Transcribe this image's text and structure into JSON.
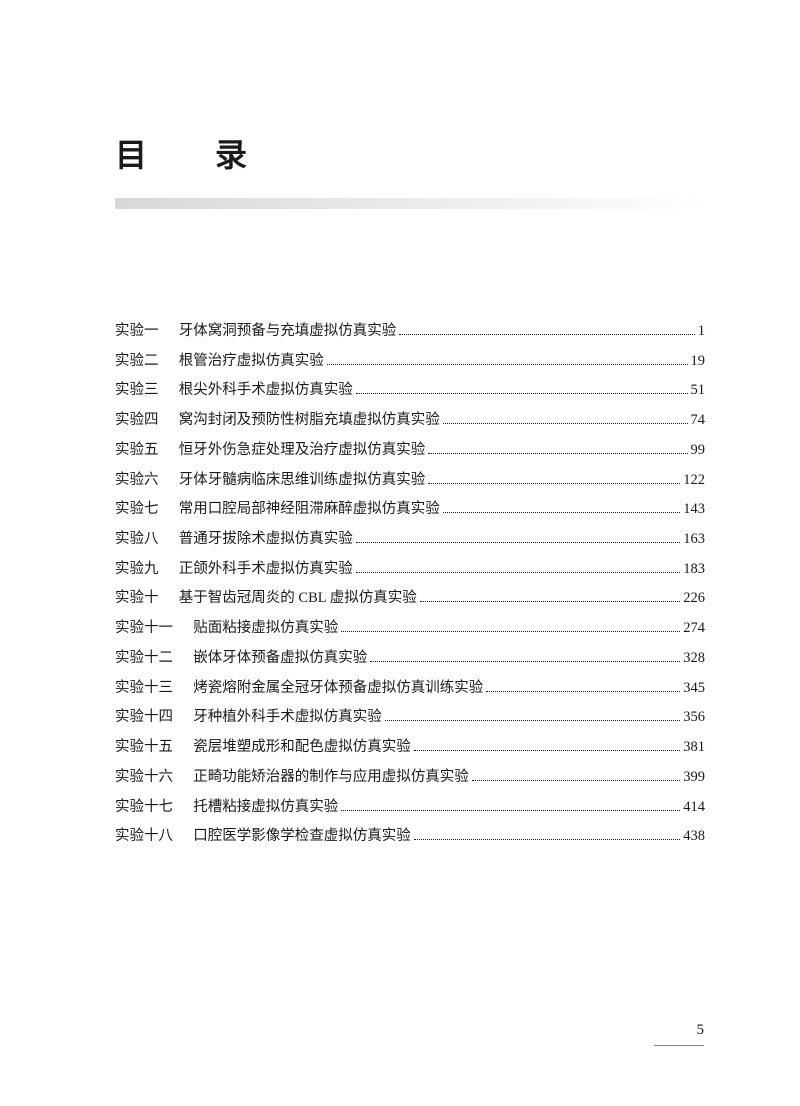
{
  "title": "目　录",
  "entries": [
    {
      "label": "实验一",
      "gap": "1.4em",
      "text": "牙体窝洞预备与充填虚拟仿真实验",
      "page": "1"
    },
    {
      "label": "实验二",
      "gap": "1.4em",
      "text": "根管治疗虚拟仿真实验",
      "page": "19"
    },
    {
      "label": "实验三",
      "gap": "1.4em",
      "text": "根尖外科手术虚拟仿真实验",
      "page": "51"
    },
    {
      "label": "实验四",
      "gap": "1.4em",
      "text": "窝沟封闭及预防性树脂充填虚拟仿真实验",
      "page": "74"
    },
    {
      "label": "实验五",
      "gap": "1.4em",
      "text": "恒牙外伤急症处理及治疗虚拟仿真实验",
      "page": "99"
    },
    {
      "label": "实验六",
      "gap": "1.4em",
      "text": "牙体牙髓病临床思维训练虚拟仿真实验",
      "page": "122"
    },
    {
      "label": "实验七",
      "gap": "1.4em",
      "text": "常用口腔局部神经阻滞麻醉虚拟仿真实验",
      "page": "143"
    },
    {
      "label": "实验八",
      "gap": "1.4em",
      "text": "普通牙拔除术虚拟仿真实验",
      "page": "163"
    },
    {
      "label": "实验九",
      "gap": "1.4em",
      "text": "正颌外科手术虚拟仿真实验",
      "page": "183"
    },
    {
      "label": "实验十",
      "gap": "1.4em",
      "text": "基于智齿冠周炎的 CBL 虚拟仿真实验",
      "page": "226"
    },
    {
      "label": "实验十一",
      "gap": "1.4em",
      "text": "贴面粘接虚拟仿真实验",
      "page": "274"
    },
    {
      "label": "实验十二",
      "gap": "1.4em",
      "text": "嵌体牙体预备虚拟仿真实验",
      "page": "328"
    },
    {
      "label": "实验十三",
      "gap": "1.4em",
      "text": "烤瓷熔附金属全冠牙体预备虚拟仿真训练实验",
      "page": "345"
    },
    {
      "label": "实验十四",
      "gap": "1.4em",
      "text": "牙种植外科手术虚拟仿真实验",
      "page": "356"
    },
    {
      "label": "实验十五",
      "gap": "1.4em",
      "text": "瓷层堆塑成形和配色虚拟仿真实验",
      "page": "381"
    },
    {
      "label": "实验十六",
      "gap": "1.4em",
      "text": "正畸功能矫治器的制作与应用虚拟仿真实验",
      "page": "399"
    },
    {
      "label": "实验十七",
      "gap": "1.4em",
      "text": "托槽粘接虚拟仿真实验",
      "page": "414"
    },
    {
      "label": "实验十八",
      "gap": "1.4em",
      "text": "口腔医学影像学检查虚拟仿真实验",
      "page": "438"
    }
  ],
  "pageNumber": "5"
}
